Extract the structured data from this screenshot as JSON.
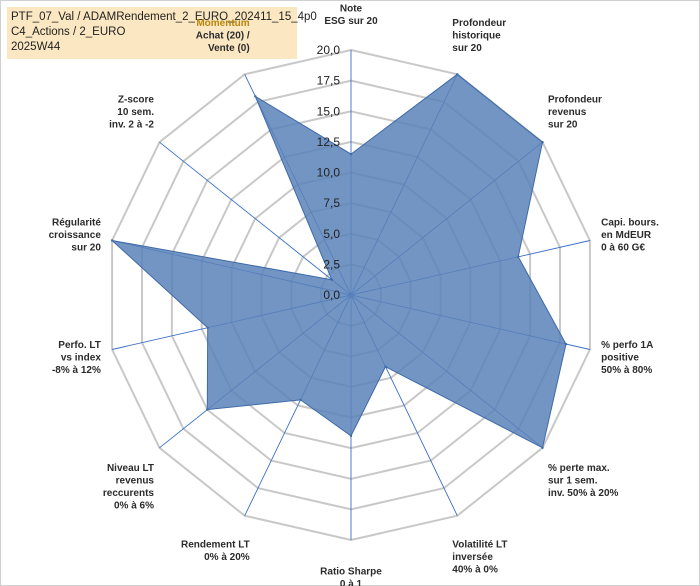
{
  "header": {
    "line1": "PTF_07_Val / ADAMRendement_2_EURO_202411_15_4p0",
    "line2": "C4_Actions / 2_EURO",
    "line3": "2025W44"
  },
  "chart_data": {
    "type": "radar",
    "title": "PTF_07_Val / ADAMRendement_2_EURO_202411_15_4p0 - C4_Actions / 2_EURO - 2025W44",
    "rmin": 0,
    "rmax": 20,
    "ticks": [
      0,
      2.5,
      5,
      7.5,
      10,
      12.5,
      15,
      17.5,
      20
    ],
    "tick_labels": [
      "0,0",
      "2,5",
      "5,0",
      "7,5",
      "10,0",
      "12,5",
      "15,0",
      "17,5",
      "20,0"
    ],
    "grid": true,
    "series_color": "#5a83b8",
    "axes": [
      {
        "lines": [
          "Note",
          "ESG sur 20"
        ],
        "value": 11.5,
        "highlight": false
      },
      {
        "lines": [
          "Profondeur",
          "historique",
          "sur 20"
        ],
        "value": 20,
        "highlight": false
      },
      {
        "lines": [
          "Profondeur",
          "revenus",
          "sur 20"
        ],
        "value": 20,
        "highlight": false
      },
      {
        "lines": [
          "Capi. bours.",
          "en MdEUR",
          "0 à 60 G€"
        ],
        "value": 14,
        "highlight": false
      },
      {
        "lines": [
          "% perfo 1A",
          "positive",
          "50% à 80%"
        ],
        "value": 18,
        "highlight": false
      },
      {
        "lines": [
          "% perte max.",
          "sur 1 sem.",
          "inv. 50% à 20%"
        ],
        "value": 20,
        "highlight": false
      },
      {
        "lines": [
          "Volatilité LT",
          "inversée",
          "40% à 0%"
        ],
        "value": 6.5,
        "highlight": false
      },
      {
        "lines": [
          "Ratio Sharpe",
          "0 à 1"
        ],
        "value": 11.5,
        "highlight": false
      },
      {
        "lines": [
          "Rendement LT",
          "0% à 20%"
        ],
        "value": 9.5,
        "highlight": false
      },
      {
        "lines": [
          "Niveau LT",
          "revenus",
          "reccurents",
          "0% à 6%"
        ],
        "value": 15,
        "highlight": false
      },
      {
        "lines": [
          "Perfo. LT",
          "vs index",
          "-8% à 12%"
        ],
        "value": 12,
        "highlight": false
      },
      {
        "lines": [
          "Régularité",
          "croissance",
          "sur 20"
        ],
        "value": 20,
        "highlight": false
      },
      {
        "lines": [
          "Z-score",
          "10 sem.",
          "inv. 2 à -2"
        ],
        "value": 2,
        "highlight": false
      },
      {
        "lines": [
          "Momentum",
          "Achat (20) /",
          "Vente (0)"
        ],
        "value": 18,
        "highlight": true
      }
    ]
  }
}
